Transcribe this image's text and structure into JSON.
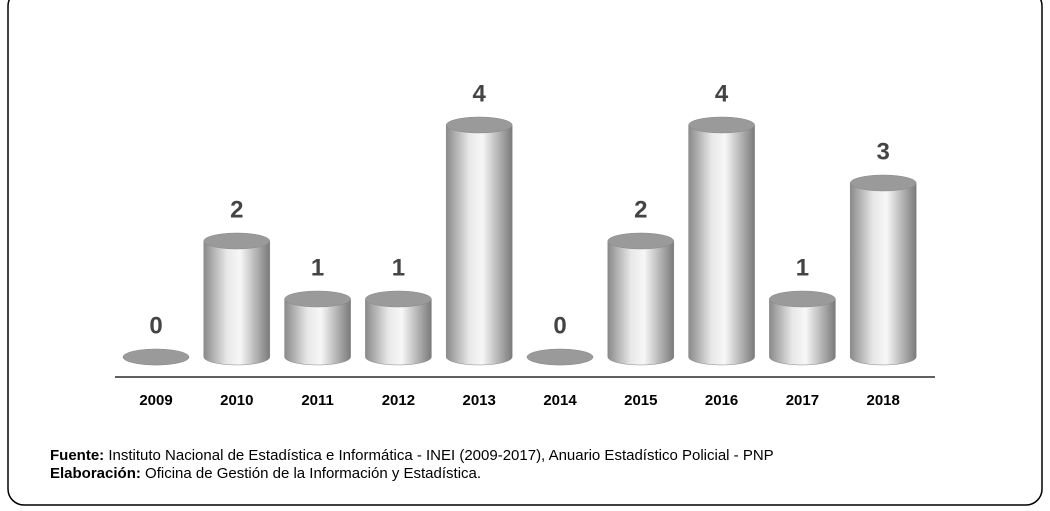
{
  "chart_data": {
    "type": "bar",
    "categories": [
      "2009",
      "2010",
      "2011",
      "2012",
      "2013",
      "2014",
      "2015",
      "2016",
      "2017",
      "2018"
    ],
    "values": [
      0,
      2,
      1,
      1,
      4,
      0,
      2,
      4,
      1,
      3
    ],
    "color": "#b5b5b5"
  },
  "source": {
    "label": "Fuente:",
    "text": "Instituto Nacional de Estadística e Informática - INEI (2009-2017), Anuario Estadístico Policial - PNP"
  },
  "credit": {
    "label": "Elaboración:",
    "text": "Oficina de Gestión de la Información y Estadística."
  }
}
